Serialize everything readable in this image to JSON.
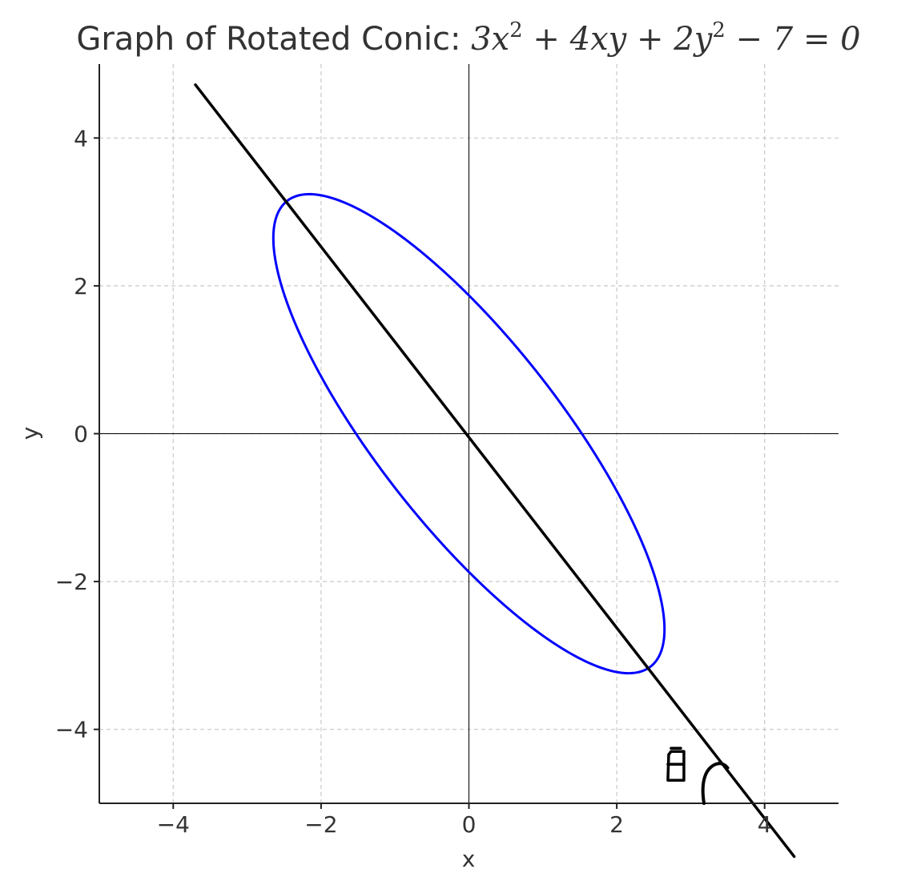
{
  "chart_data": {
    "type": "line",
    "title": {
      "prefix": "Graph of Rotated Conic: ",
      "equation_parts": [
        {
          "t": "3"
        },
        {
          "t": "x",
          "i": true
        },
        {
          "t": "2",
          "sup": true
        },
        {
          "t": " + 4"
        },
        {
          "t": "xy",
          "i": true
        },
        {
          "t": " + 2"
        },
        {
          "t": "y",
          "i": true
        },
        {
          "t": "2",
          "sup": true
        },
        {
          "t": " − 7 = 0"
        }
      ]
    },
    "xlabel": "x",
    "ylabel": "y",
    "xlim": [
      -5,
      5
    ],
    "ylim": [
      -5,
      5
    ],
    "xticks": [
      -4,
      -2,
      0,
      2,
      4
    ],
    "yticks": [
      -4,
      -2,
      0,
      2,
      4
    ],
    "xtick_labels": [
      "−4",
      "−2",
      "0",
      "2",
      "4"
    ],
    "ytick_labels": [
      "−4",
      "−2",
      "0",
      "2",
      "4"
    ],
    "grid": true,
    "zero_lines": true,
    "series": [
      {
        "kind": "conic",
        "equation": {
          "A": 3,
          "B": 4,
          "C": 2,
          "F": -7
        },
        "color": "#0000ff"
      },
      {
        "kind": "line",
        "x": [
          -3.7,
          4.4
        ],
        "y": [
          4.72,
          -5.72
        ],
        "color": "#000000"
      }
    ],
    "annotations": [
      {
        "text": "θ",
        "handwritten": true,
        "x": 2.8,
        "y": -4.45
      },
      {
        "kind": "angle-arc",
        "handwritten": true
      }
    ]
  }
}
